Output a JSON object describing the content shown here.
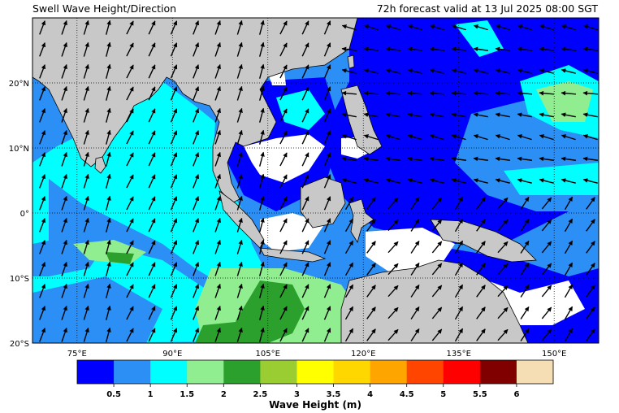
{
  "header": {
    "title": "Swell Wave Height/Direction",
    "valid_time": "72h forecast valid at 13 Jul 2025 08:00 SGT"
  },
  "map": {
    "lon_range": [
      68,
      157
    ],
    "lat_range": [
      -20,
      30
    ],
    "lon_ticks": [
      {
        "value": 75,
        "label": "75°E"
      },
      {
        "value": 90,
        "label": "90°E"
      },
      {
        "value": 105,
        "label": "105°E"
      },
      {
        "value": 120,
        "label": "120°E"
      },
      {
        "value": 135,
        "label": "135°E"
      },
      {
        "value": 150,
        "label": "150°E"
      }
    ],
    "lat_ticks": [
      {
        "value": 20,
        "label": "20°N"
      },
      {
        "value": 10,
        "label": "10°N"
      },
      {
        "value": 0,
        "label": "0°"
      },
      {
        "value": -10,
        "label": "10°S"
      },
      {
        "value": -20,
        "label": "20°S"
      }
    ],
    "land_color": "#c8c8c8",
    "gridlines": "dotted"
  },
  "colorbar": {
    "label": "Wave Height (m)",
    "colors": [
      "#0000ff",
      "#2b8ff5",
      "#00ffff",
      "#90ee90",
      "#2ca02c",
      "#9acd32",
      "#ffff00",
      "#ffd700",
      "#ffa500",
      "#ff4500",
      "#ff0000",
      "#800000",
      "#f5deb3"
    ],
    "ticks": [
      "0.5",
      "1",
      "1.5",
      "2",
      "2.5",
      "3",
      "3.5",
      "4",
      "4.5",
      "5",
      "5.5",
      "6"
    ]
  }
}
